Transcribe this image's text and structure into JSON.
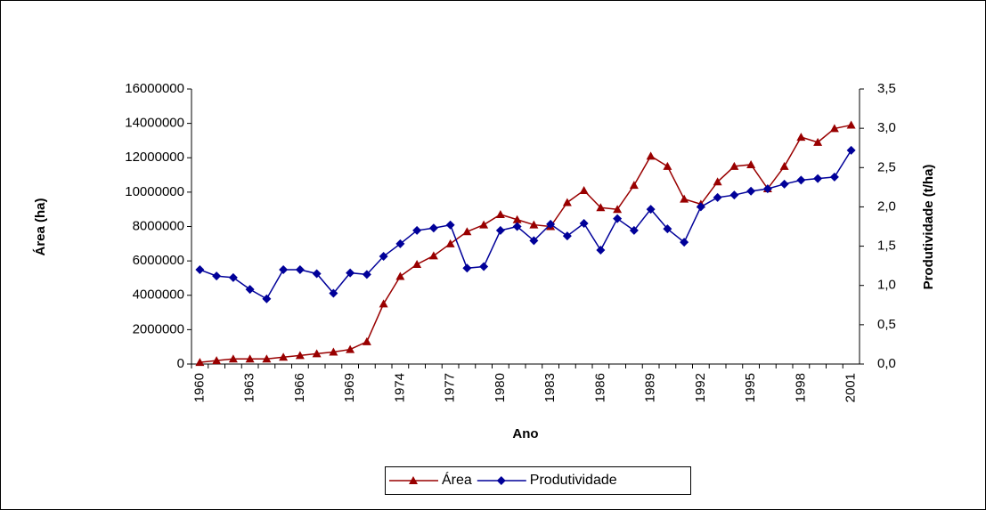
{
  "chart_data": {
    "type": "line",
    "xlabel": "Ano",
    "ylabel": "Área (ha)",
    "y2label": "Produtividade (t/ha)",
    "categories": [
      "1960",
      null,
      null,
      "1963",
      null,
      null,
      "1966",
      null,
      null,
      "1969",
      null,
      null,
      "1974",
      null,
      null,
      "1977",
      null,
      null,
      "1980",
      null,
      null,
      "1983",
      null,
      null,
      "1986",
      null,
      null,
      "1989",
      null,
      null,
      "1992",
      null,
      null,
      "1995",
      null,
      null,
      "1998",
      null,
      null,
      "2001"
    ],
    "series": [
      {
        "name": "Área",
        "color": "#990000",
        "marker": "triangle",
        "values": [
          100000,
          200000,
          300000,
          300000,
          300000,
          400000,
          500000,
          600000,
          700000,
          850000,
          1300000,
          3500000,
          5100000,
          5800000,
          6300000,
          7000000,
          7700000,
          8100000,
          8700000,
          8400000,
          8100000,
          8000000,
          9400000,
          10100000,
          9100000,
          9000000,
          10400000,
          12100000,
          11500000,
          9600000,
          9300000,
          10600000,
          11500000,
          11600000,
          10200000,
          11500000,
          13200000,
          12900000,
          13700000,
          13900000
        ]
      },
      {
        "name": "Produtividade",
        "color": "#000099",
        "marker": "diamond",
        "axis": "y2",
        "values": [
          1.2,
          1.12,
          1.1,
          0.95,
          0.83,
          1.2,
          1.2,
          1.15,
          0.9,
          1.16,
          1.14,
          1.37,
          1.53,
          1.7,
          1.73,
          1.77,
          1.22,
          1.24,
          1.7,
          1.75,
          1.57,
          1.78,
          1.63,
          1.79,
          1.45,
          1.85,
          1.7,
          1.97,
          1.72,
          1.55,
          2.0,
          2.12,
          2.15,
          2.2,
          2.23,
          2.29,
          2.34,
          2.36,
          2.38,
          2.72
        ]
      }
    ],
    "ylim": [
      0,
      16000000
    ],
    "yticks": [
      0,
      2000000,
      4000000,
      6000000,
      8000000,
      10000000,
      12000000,
      14000000,
      16000000
    ],
    "y2lim": [
      0,
      3.5
    ],
    "y2ticks": [
      {
        "value": 0,
        "label": "0,0"
      },
      {
        "value": 0.5,
        "label": "0,5"
      },
      {
        "value": 1,
        "label": "1,0"
      },
      {
        "value": 1.5,
        "label": "1,5"
      },
      {
        "value": 2,
        "label": "2,0"
      },
      {
        "value": 2.5,
        "label": "2,5"
      },
      {
        "value": 3,
        "label": "3,0"
      },
      {
        "value": 3.5,
        "label": "3,5"
      }
    ],
    "grid": false,
    "legend": "bottom"
  }
}
